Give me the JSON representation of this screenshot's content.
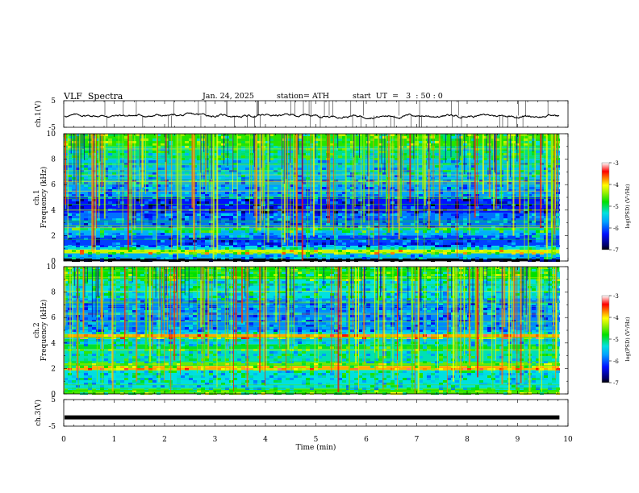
{
  "header": {
    "title": "VLF  Spectra",
    "date": "Jan. 24, 2025",
    "station": "station= ATH",
    "start": "start  UT  =   3  : 50 : 0"
  },
  "chart_data": [
    {
      "type": "line",
      "panel": "ch1-waveform",
      "ylabel": "ch.1(V)",
      "ylim": [
        -5,
        5
      ],
      "y_ticks": [
        "5",
        "-5"
      ],
      "xlim": [
        0,
        10
      ],
      "trace_mean_V": -0.6,
      "trace_band_V": [
        -1.8,
        0.4
      ],
      "spikes": "sparse vertical spikes reaching 5 and -5"
    },
    {
      "type": "heatmap",
      "panel": "ch1-spectrogram",
      "ylabel": "ch.1\nFrequency (kHz)",
      "ylim": [
        0,
        10
      ],
      "y_ticks": [
        "10",
        "8",
        "6",
        "4",
        "2",
        "0"
      ],
      "xlim": [
        0,
        10
      ],
      "colorbar": {
        "label": "log(PSD) (V²/Hz)",
        "range": [
          -7,
          -3
        ],
        "ticks": [
          "-3",
          "-4",
          "-5",
          "-6",
          "-7"
        ]
      },
      "rows": [
        {
          "f": [
            9.0,
            10.0
          ],
          "v": -4.7
        },
        {
          "f": [
            8.0,
            9.0
          ],
          "v": -5.1
        },
        {
          "f": [
            6.5,
            8.0
          ],
          "v": -5.5
        },
        {
          "f": [
            5.0,
            6.5
          ],
          "v": -5.7
        },
        {
          "f": [
            3.8,
            5.0
          ],
          "v": -6.3
        },
        {
          "f": [
            2.6,
            3.8
          ],
          "v": -5.9
        },
        {
          "f": [
            2.4,
            2.6
          ],
          "v": -5.0
        },
        {
          "f": [
            2.0,
            2.4
          ],
          "v": -5.6
        },
        {
          "f": [
            1.2,
            2.0
          ],
          "v": -6.1
        },
        {
          "f": [
            0.9,
            1.2
          ],
          "v": -5.3
        },
        {
          "f": [
            0.6,
            0.9
          ],
          "v": -4.2
        },
        {
          "f": [
            0.2,
            0.6
          ],
          "v": -5.6
        },
        {
          "f": [
            0.0,
            0.2
          ],
          "v": -7.0
        }
      ]
    },
    {
      "type": "heatmap",
      "panel": "ch2-spectrogram",
      "ylabel": "ch.2\nFrequency (kHz)",
      "ylim": [
        0,
        10
      ],
      "y_ticks": [
        "10",
        "8",
        "6",
        "4",
        "2",
        "0"
      ],
      "xlim": [
        0,
        10
      ],
      "colorbar": {
        "label": "log(PSD) (V²/Hz)",
        "range": [
          -7,
          -3
        ],
        "ticks": [
          "-3",
          "-4",
          "-5",
          "-6",
          "-7"
        ]
      },
      "rows": [
        {
          "f": [
            9.0,
            10.0
          ],
          "v": -4.8
        },
        {
          "f": [
            7.5,
            9.0
          ],
          "v": -5.3
        },
        {
          "f": [
            5.0,
            7.5
          ],
          "v": -5.8
        },
        {
          "f": [
            4.7,
            5.0
          ],
          "v": -5.4
        },
        {
          "f": [
            4.4,
            4.7
          ],
          "v": -3.8
        },
        {
          "f": [
            3.9,
            4.4
          ],
          "v": -5.4
        },
        {
          "f": [
            3.5,
            3.9
          ],
          "v": -4.9
        },
        {
          "f": [
            2.5,
            3.5
          ],
          "v": -5.2
        },
        {
          "f": [
            2.2,
            2.5
          ],
          "v": -4.5
        },
        {
          "f": [
            1.9,
            2.2
          ],
          "v": -3.8
        },
        {
          "f": [
            0.4,
            1.9
          ],
          "v": -5.3
        },
        {
          "f": [
            0.0,
            0.4
          ],
          "v": -4.6
        }
      ]
    },
    {
      "type": "line",
      "panel": "ch3-waveform",
      "ylabel": "ch.3(V)",
      "ylim": [
        -5,
        5
      ],
      "y_ticks": [
        "5",
        "-5"
      ],
      "xlim": [
        0,
        10
      ],
      "trace_mean_V": -1.7,
      "xlabel": "Time  (min)",
      "x_ticks": [
        "0",
        "1",
        "2",
        "3",
        "4",
        "5",
        "6",
        "7",
        "8",
        "9",
        "10"
      ]
    }
  ]
}
